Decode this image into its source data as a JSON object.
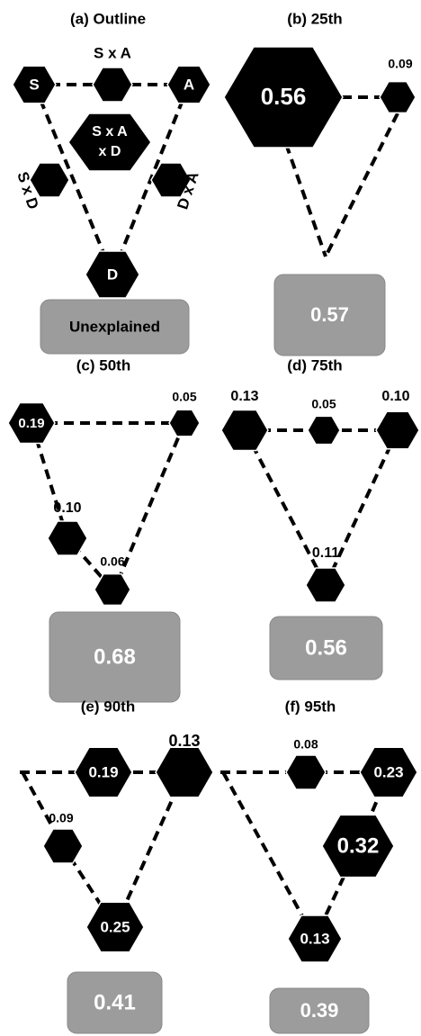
{
  "panels": [
    {
      "title": "(a) Outline",
      "nodes": [
        {
          "label": "S"
        },
        {
          "label": "S x A"
        },
        {
          "label": "A"
        },
        {
          "lines": [
            "S x A",
            "x D"
          ]
        },
        {
          "label": "S x D"
        },
        {
          "label": "D x A"
        },
        {
          "label": "D"
        }
      ],
      "box": "Unexplained"
    },
    {
      "title": "(b) 25th",
      "nodes": [
        {
          "label": "0.56"
        },
        {
          "label": "0.09"
        }
      ],
      "box": "0.57"
    },
    {
      "title": "(c) 50th",
      "nodes": [
        {
          "label": "0.19"
        },
        {
          "label": "0.05"
        },
        {
          "label": "0.10"
        },
        {
          "label": "0.06"
        }
      ],
      "box": "0.68"
    },
    {
      "title": "(d) 75th",
      "nodes": [
        {
          "label": "0.13"
        },
        {
          "label": "0.05"
        },
        {
          "label": "0.10"
        },
        {
          "label": "0.11"
        }
      ],
      "box": "0.56"
    },
    {
      "title": "(e) 90th",
      "nodes": [
        {
          "label": "0.19"
        },
        {
          "label": "0.13"
        },
        {
          "label": "0.09"
        },
        {
          "label": "0.25"
        }
      ],
      "box": "0.41"
    },
    {
      "title": "(f) 95th",
      "nodes": [
        {
          "label": "0.08"
        },
        {
          "label": "0.23"
        },
        {
          "label": "0.32"
        },
        {
          "label": "0.13"
        }
      ],
      "box": "0.39"
    }
  ]
}
